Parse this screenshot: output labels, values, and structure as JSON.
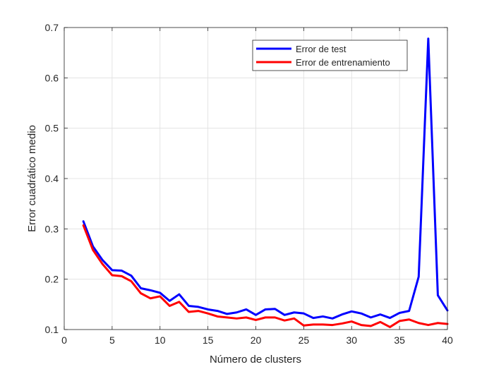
{
  "chart_data": {
    "type": "line",
    "title": "",
    "xlabel": "Número de clusters",
    "ylabel": "Error cuadrático medio",
    "xlim": [
      0,
      40
    ],
    "ylim": [
      0.1,
      0.7
    ],
    "xticks": [
      0,
      5,
      10,
      15,
      20,
      25,
      30,
      35,
      40
    ],
    "yticks": [
      0.1,
      0.2,
      0.3,
      0.4,
      0.5,
      0.6,
      0.7
    ],
    "xtick_labels": [
      "0",
      "5",
      "10",
      "15",
      "20",
      "25",
      "30",
      "35",
      "40"
    ],
    "ytick_labels": [
      "0.1",
      "0.2",
      "0.3",
      "0.4",
      "0.5",
      "0.6",
      "0.7"
    ],
    "grid": true,
    "legend_position": "top-right",
    "x": [
      2,
      3,
      4,
      5,
      6,
      7,
      8,
      9,
      10,
      11,
      12,
      13,
      14,
      15,
      16,
      17,
      18,
      19,
      20,
      21,
      22,
      23,
      24,
      25,
      26,
      27,
      28,
      29,
      30,
      31,
      32,
      33,
      34,
      35,
      36,
      37,
      38,
      39,
      40
    ],
    "series": [
      {
        "name": "Error de test",
        "color": "#0000ff",
        "values": [
          0.315,
          0.265,
          0.238,
          0.218,
          0.217,
          0.207,
          0.182,
          0.178,
          0.173,
          0.157,
          0.17,
          0.147,
          0.145,
          0.14,
          0.137,
          0.131,
          0.134,
          0.14,
          0.129,
          0.14,
          0.141,
          0.129,
          0.134,
          0.132,
          0.123,
          0.126,
          0.122,
          0.13,
          0.136,
          0.132,
          0.124,
          0.13,
          0.123,
          0.133,
          0.137,
          0.205,
          0.678,
          0.168,
          0.138
        ]
      },
      {
        "name": "Error de entrenamiento",
        "color": "#ff0000",
        "values": [
          0.307,
          0.258,
          0.23,
          0.208,
          0.206,
          0.196,
          0.172,
          0.162,
          0.166,
          0.147,
          0.155,
          0.135,
          0.137,
          0.132,
          0.126,
          0.124,
          0.122,
          0.124,
          0.119,
          0.124,
          0.124,
          0.118,
          0.122,
          0.108,
          0.11,
          0.11,
          0.109,
          0.112,
          0.116,
          0.109,
          0.107,
          0.115,
          0.105,
          0.117,
          0.12,
          0.113,
          0.109,
          0.113,
          0.111
        ]
      }
    ]
  }
}
